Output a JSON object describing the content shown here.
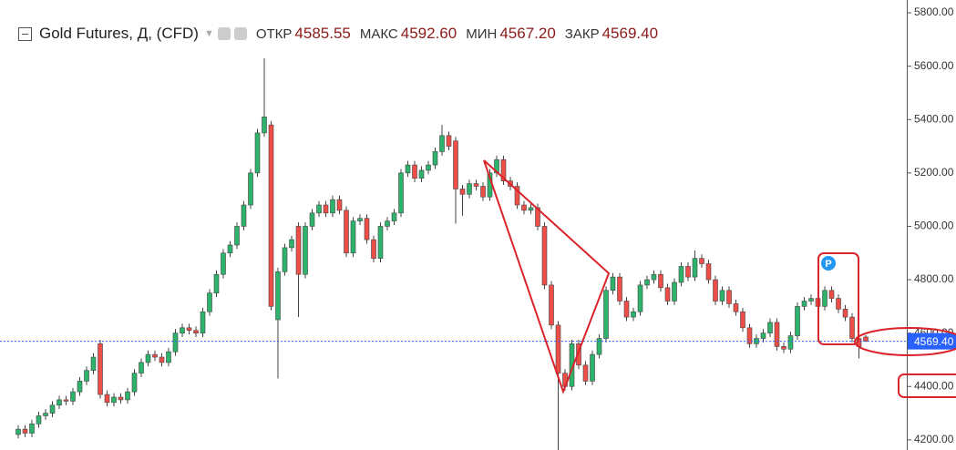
{
  "chart_data": {
    "type": "candlestick",
    "header": {
      "symbol": "Gold Futures, Д, (CFD)",
      "fields": [
        {
          "label": "ОТКР",
          "value": "4585.55"
        },
        {
          "label": "МАКС",
          "value": "4592.60"
        },
        {
          "label": "МИН",
          "value": "4567.20"
        },
        {
          "label": "ЗАКР",
          "value": "4569.40"
        }
      ]
    },
    "marker_label": "P",
    "up_color": "#2eb36c",
    "down_color": "#ee4e48",
    "ylim": [
      4162,
      5848
    ],
    "yticks": [
      {
        "value": 4200,
        "label": "4200.00"
      },
      {
        "value": 4400,
        "label": "4400.00"
      },
      {
        "value": 4600,
        "label": "4600.00"
      },
      {
        "value": 4800,
        "label": "4800.00"
      },
      {
        "value": 5000,
        "label": "5000.00"
      },
      {
        "value": 5200,
        "label": "5200.00"
      },
      {
        "value": 5400,
        "label": "5400.00"
      },
      {
        "value": 5600,
        "label": "5600.00"
      },
      {
        "value": 5800,
        "label": "5800.00"
      }
    ],
    "last_price": {
      "value": 4569.4,
      "label": "4569.40",
      "color": "#2962ff"
    },
    "candles": [
      [
        4220,
        4255,
        4205,
        4240
      ],
      [
        4240,
        4255,
        4210,
        4225
      ],
      [
        4225,
        4275,
        4210,
        4260
      ],
      [
        4260,
        4305,
        4245,
        4290
      ],
      [
        4290,
        4315,
        4275,
        4300
      ],
      [
        4300,
        4345,
        4285,
        4330
      ],
      [
        4330,
        4365,
        4315,
        4350
      ],
      [
        4350,
        4365,
        4330,
        4345
      ],
      [
        4345,
        4395,
        4330,
        4380
      ],
      [
        4380,
        4435,
        4365,
        4420
      ],
      [
        4420,
        4475,
        4405,
        4460
      ],
      [
        4460,
        4525,
        4445,
        4510
      ],
      [
        4560,
        4575,
        4355,
        4370
      ],
      [
        4370,
        4385,
        4325,
        4340
      ],
      [
        4340,
        4375,
        4325,
        4360
      ],
      [
        4360,
        4375,
        4335,
        4350
      ],
      [
        4350,
        4395,
        4335,
        4380
      ],
      [
        4380,
        4465,
        4365,
        4450
      ],
      [
        4450,
        4505,
        4435,
        4490
      ],
      [
        4490,
        4535,
        4475,
        4520
      ],
      [
        4520,
        4535,
        4495,
        4510
      ],
      [
        4510,
        4525,
        4475,
        4490
      ],
      [
        4490,
        4545,
        4475,
        4530
      ],
      [
        4530,
        4615,
        4515,
        4600
      ],
      [
        4600,
        4635,
        4585,
        4620
      ],
      [
        4620,
        4635,
        4595,
        4610
      ],
      [
        4610,
        4625,
        4585,
        4600
      ],
      [
        4600,
        4695,
        4585,
        4680
      ],
      [
        4680,
        4765,
        4665,
        4750
      ],
      [
        4750,
        4835,
        4735,
        4820
      ],
      [
        4820,
        4915,
        4805,
        4900
      ],
      [
        4900,
        4945,
        4885,
        4930
      ],
      [
        4930,
        5015,
        4915,
        5000
      ],
      [
        5000,
        5095,
        4985,
        5080
      ],
      [
        5080,
        5215,
        5065,
        5200
      ],
      [
        5200,
        5365,
        5185,
        5350
      ],
      [
        5350,
        5630,
        5335,
        5410
      ],
      [
        5380,
        5395,
        4685,
        4700
      ],
      [
        4650,
        4845,
        4430,
        4830
      ],
      [
        4830,
        4935,
        4815,
        4920
      ],
      [
        4920,
        4965,
        4905,
        4950
      ],
      [
        5000,
        5015,
        4660,
        4820
      ],
      [
        4820,
        5015,
        4805,
        5000
      ],
      [
        5000,
        5065,
        4985,
        5050
      ],
      [
        5050,
        5095,
        5035,
        5080
      ],
      [
        5080,
        5095,
        5035,
        5050
      ],
      [
        5050,
        5115,
        5035,
        5100
      ],
      [
        5100,
        5115,
        5045,
        5060
      ],
      [
        5060,
        5075,
        4885,
        4900
      ],
      [
        4900,
        5035,
        4885,
        5020
      ],
      [
        5020,
        5045,
        5005,
        5030
      ],
      [
        5030,
        5045,
        4935,
        4950
      ],
      [
        4950,
        4965,
        4865,
        4880
      ],
      [
        4880,
        5015,
        4865,
        5000
      ],
      [
        5000,
        5035,
        4985,
        5020
      ],
      [
        5020,
        5065,
        5005,
        5050
      ],
      [
        5050,
        5215,
        5035,
        5200
      ],
      [
        5200,
        5245,
        5185,
        5230
      ],
      [
        5230,
        5245,
        5165,
        5180
      ],
      [
        5180,
        5225,
        5165,
        5210
      ],
      [
        5210,
        5245,
        5195,
        5230
      ],
      [
        5230,
        5295,
        5215,
        5280
      ],
      [
        5280,
        5380,
        5265,
        5340
      ],
      [
        5340,
        5355,
        5285,
        5300
      ],
      [
        5320,
        5335,
        5010,
        5140
      ],
      [
        5140,
        5155,
        5040,
        5120
      ],
      [
        5120,
        5175,
        5105,
        5160
      ],
      [
        5160,
        5175,
        5135,
        5150
      ],
      [
        5150,
        5165,
        5095,
        5110
      ],
      [
        5110,
        5215,
        5095,
        5200
      ],
      [
        5200,
        5265,
        5185,
        5250
      ],
      [
        5250,
        5265,
        5155,
        5170
      ],
      [
        5170,
        5185,
        5135,
        5150
      ],
      [
        5150,
        5165,
        5065,
        5080
      ],
      [
        5080,
        5095,
        5045,
        5060
      ],
      [
        5060,
        5085,
        5045,
        5070
      ],
      [
        5070,
        5085,
        4985,
        5000
      ],
      [
        5000,
        5015,
        4765,
        4780
      ],
      [
        4780,
        4795,
        4615,
        4630
      ],
      [
        4630,
        4645,
        4150,
        4450
      ],
      [
        4450,
        4465,
        4385,
        4400
      ],
      [
        4400,
        4575,
        4385,
        4560
      ],
      [
        4560,
        4575,
        4465,
        4480
      ],
      [
        4480,
        4495,
        4405,
        4420
      ],
      [
        4420,
        4535,
        4405,
        4520
      ],
      [
        4520,
        4595,
        4505,
        4580
      ],
      [
        4580,
        4775,
        4565,
        4760
      ],
      [
        4760,
        4825,
        4745,
        4810
      ],
      [
        4810,
        4825,
        4705,
        4720
      ],
      [
        4720,
        4735,
        4645,
        4660
      ],
      [
        4660,
        4695,
        4645,
        4680
      ],
      [
        4680,
        4795,
        4665,
        4780
      ],
      [
        4780,
        4815,
        4765,
        4800
      ],
      [
        4800,
        4835,
        4785,
        4820
      ],
      [
        4820,
        4835,
        4755,
        4770
      ],
      [
        4770,
        4785,
        4705,
        4720
      ],
      [
        4720,
        4805,
        4705,
        4790
      ],
      [
        4790,
        4865,
        4775,
        4850
      ],
      [
        4850,
        4865,
        4795,
        4810
      ],
      [
        4810,
        4910,
        4795,
        4880
      ],
      [
        4880,
        4895,
        4845,
        4860
      ],
      [
        4860,
        4875,
        4785,
        4800
      ],
      [
        4800,
        4815,
        4705,
        4720
      ],
      [
        4720,
        4775,
        4705,
        4760
      ],
      [
        4760,
        4775,
        4695,
        4710
      ],
      [
        4710,
        4725,
        4665,
        4680
      ],
      [
        4680,
        4695,
        4605,
        4620
      ],
      [
        4620,
        4635,
        4545,
        4560
      ],
      [
        4560,
        4595,
        4545,
        4580
      ],
      [
        4580,
        4615,
        4565,
        4600
      ],
      [
        4600,
        4655,
        4585,
        4640
      ],
      [
        4640,
        4655,
        4535,
        4550
      ],
      [
        4550,
        4565,
        4525,
        4540
      ],
      [
        4540,
        4605,
        4525,
        4590
      ],
      [
        4590,
        4715,
        4575,
        4700
      ],
      [
        4700,
        4735,
        4685,
        4720
      ],
      [
        4720,
        4745,
        4705,
        4730
      ],
      [
        4730,
        4745,
        4685,
        4700
      ],
      [
        4700,
        4775,
        4685,
        4760
      ],
      [
        4760,
        4775,
        4715,
        4730
      ],
      [
        4730,
        4745,
        4675,
        4690
      ],
      [
        4690,
        4705,
        4645,
        4660
      ],
      [
        4660,
        4675,
        4565,
        4580
      ],
      [
        4580,
        4595,
        4505,
        4550
      ],
      [
        4585.55,
        4592.6,
        4567.2,
        4569.4
      ]
    ]
  }
}
